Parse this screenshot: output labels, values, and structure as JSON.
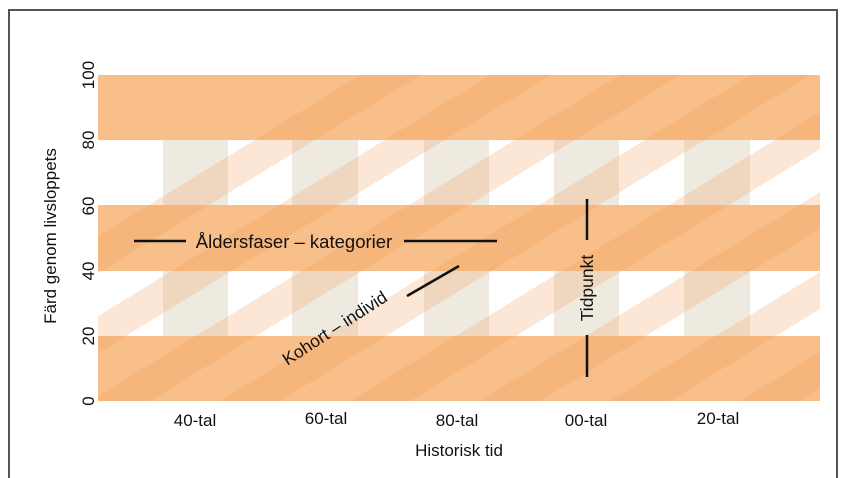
{
  "diagram": {
    "y_axis": {
      "label": "Färd genom livsloppets",
      "ticks": [
        "0",
        "20",
        "40",
        "60",
        "80",
        "100"
      ]
    },
    "x_axis": {
      "label": "Historisk tid",
      "ticks": [
        "40-tal",
        "60-tal",
        "80-tal",
        "00-tal",
        "20-tal"
      ]
    },
    "annotations": {
      "age_phases": "Åldersfaser – kategorier",
      "cohort": "Kohort – individ",
      "time_point": "Tidpunkt"
    },
    "colors": {
      "band": "#f8bf8a",
      "stripe": "#f0904a",
      "column": "#eeeae0",
      "frame": "#555555"
    }
  }
}
